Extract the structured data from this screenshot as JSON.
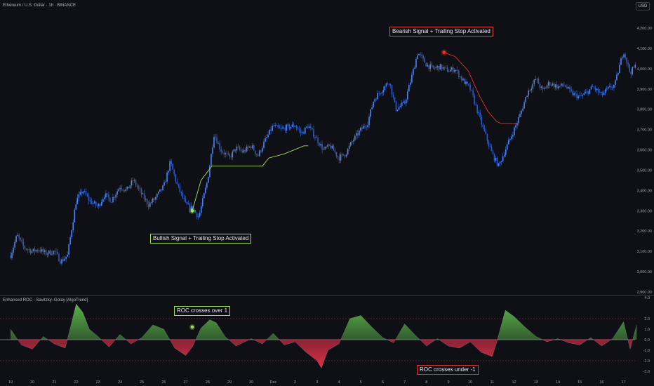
{
  "header": {
    "symbol_title": "Ethereum / U.S. Dollar · 1h · BINANCE",
    "currency_button": "USD"
  },
  "indicator": {
    "title": "Enhanced ROC - Savitzky–Golay [AlgoTrend]"
  },
  "annotations": {
    "bearish": "Bearish Signal + Trailing Stop Activated",
    "bullish": "Bullish Signal + Trailing Stop Activated",
    "roc_over": "ROC crosses over 1",
    "roc_under": "ROC crosses under -1"
  },
  "colors": {
    "background": "#0f1015",
    "candle": "#3f6fd8",
    "bull_stop": "#a4e35a",
    "bear_stop": "#e03030",
    "osc_pos": "#5ab24a",
    "osc_neg": "#e0304a",
    "grid_dash": "#a03c3c"
  },
  "chart_data": [
    {
      "type": "candlestick",
      "series_name": "ETHUSD 1h",
      "x_tick_labels": [
        "19",
        "20",
        "21",
        "22",
        "23",
        "24",
        "25",
        "26",
        "27",
        "28",
        "29",
        "30",
        "Dec",
        "2",
        "3",
        "4",
        "5",
        "6",
        "7",
        "8",
        "9",
        "10",
        "11",
        "12",
        "13",
        "14",
        "15",
        "16",
        "17"
      ],
      "y_tick_labels": [
        "2,900.00",
        "3,000.00",
        "3,100.00",
        "3,200.00",
        "3,300.00",
        "3,400.00",
        "3,500.00",
        "3,600.00",
        "3,700.00",
        "3,800.00",
        "3,900.00",
        "4,000.00",
        "4,100.00",
        "4,200.00"
      ],
      "ylim": [
        2890,
        4250
      ],
      "price_path": [
        [
          0,
          3080
        ],
        [
          0.3,
          3180
        ],
        [
          0.6,
          3120
        ],
        [
          1,
          3100
        ],
        [
          1.3,
          3110
        ],
        [
          1.6,
          3090
        ],
        [
          2,
          3100
        ],
        [
          2.3,
          3050
        ],
        [
          2.6,
          3080
        ],
        [
          3,
          3350
        ],
        [
          3.3,
          3400
        ],
        [
          3.6,
          3350
        ],
        [
          4,
          3320
        ],
        [
          4.3,
          3380
        ],
        [
          4.6,
          3350
        ],
        [
          5,
          3420
        ],
        [
          5.3,
          3400
        ],
        [
          5.6,
          3450
        ],
        [
          6,
          3380
        ],
        [
          6.3,
          3330
        ],
        [
          6.6,
          3360
        ],
        [
          7,
          3420
        ],
        [
          7.3,
          3540
        ],
        [
          7.6,
          3430
        ],
        [
          8,
          3330
        ],
        [
          8.3,
          3310
        ],
        [
          8.6,
          3270
        ],
        [
          9,
          3450
        ],
        [
          9.3,
          3680
        ],
        [
          9.6,
          3600
        ],
        [
          10,
          3560
        ],
        [
          10.3,
          3610
        ],
        [
          10.6,
          3590
        ],
        [
          11,
          3620
        ],
        [
          11.3,
          3570
        ],
        [
          11.6,
          3640
        ],
        [
          12,
          3720
        ],
        [
          12.3,
          3700
        ],
        [
          12.6,
          3710
        ],
        [
          13,
          3720
        ],
        [
          13.3,
          3680
        ],
        [
          13.6,
          3720
        ],
        [
          14,
          3650
        ],
        [
          14.3,
          3600
        ],
        [
          14.6,
          3620
        ],
        [
          15,
          3560
        ],
        [
          15.3,
          3580
        ],
        [
          15.6,
          3640
        ],
        [
          16,
          3700
        ],
        [
          16.3,
          3730
        ],
        [
          16.6,
          3850
        ],
        [
          17,
          3900
        ],
        [
          17.3,
          3940
        ],
        [
          17.6,
          3800
        ],
        [
          18,
          3830
        ],
        [
          18.3,
          3950
        ],
        [
          18.6,
          4080
        ],
        [
          19,
          4020
        ],
        [
          19.3,
          4000
        ],
        [
          19.6,
          4010
        ],
        [
          20,
          3990
        ],
        [
          20.3,
          4000
        ],
        [
          20.6,
          3950
        ],
        [
          21,
          3900
        ],
        [
          21.3,
          3800
        ],
        [
          21.6,
          3700
        ],
        [
          22,
          3580
        ],
        [
          22.3,
          3520
        ],
        [
          22.6,
          3600
        ],
        [
          23,
          3700
        ],
        [
          23.3,
          3780
        ],
        [
          23.6,
          3880
        ],
        [
          24,
          3950
        ],
        [
          24.3,
          3890
        ],
        [
          24.6,
          3930
        ],
        [
          25,
          3910
        ],
        [
          25.3,
          3920
        ],
        [
          25.6,
          3880
        ],
        [
          26,
          3860
        ],
        [
          26.3,
          3880
        ],
        [
          26.6,
          3910
        ],
        [
          27,
          3870
        ],
        [
          27.3,
          3900
        ],
        [
          27.6,
          3920
        ],
        [
          28,
          4090
        ],
        [
          28.3,
          3980
        ],
        [
          28.6,
          4020
        ]
      ],
      "signals": [
        {
          "label": "bullish",
          "day": 8.3,
          "price": 3300
        },
        {
          "label": "bearish",
          "day": 19.8,
          "price": 4080
        }
      ],
      "bull_trailing_stop": [
        [
          8.3,
          3300
        ],
        [
          8.7,
          3450
        ],
        [
          9.2,
          3520
        ],
        [
          11.5,
          3520
        ],
        [
          11.8,
          3560
        ],
        [
          12.5,
          3580
        ],
        [
          13.4,
          3620
        ],
        [
          13.6,
          3620
        ]
      ],
      "bear_trailing_stop": [
        [
          19.8,
          4080
        ],
        [
          20.3,
          4060
        ],
        [
          20.9,
          3990
        ],
        [
          21.4,
          3870
        ],
        [
          21.8,
          3790
        ],
        [
          22.2,
          3740
        ],
        [
          22.4,
          3730
        ],
        [
          23.2,
          3730
        ]
      ]
    },
    {
      "type": "area",
      "series_name": "Enhanced ROC",
      "title": "Enhanced ROC - Savitzky–Golay [AlgoTrend]",
      "y_tick_labels": [
        "4.0",
        "2.0",
        "1.0",
        "0.0",
        "-1.0",
        "-2.0",
        "-3.0"
      ],
      "ylim": [
        -3.2,
        4.3
      ],
      "levels": [
        2.0,
        0.0,
        -2.0
      ],
      "values": [
        [
          0,
          1.0
        ],
        [
          0.5,
          -0.5
        ],
        [
          1,
          -0.9
        ],
        [
          1.5,
          0.3
        ],
        [
          2,
          -0.4
        ],
        [
          2.5,
          -0.8
        ],
        [
          3,
          3.4
        ],
        [
          3.3,
          2.6
        ],
        [
          3.6,
          1.0
        ],
        [
          4,
          0.3
        ],
        [
          4.5,
          -0.7
        ],
        [
          5,
          0.5
        ],
        [
          5.5,
          -0.4
        ],
        [
          6,
          0.2
        ],
        [
          6.5,
          1.4
        ],
        [
          7,
          1.0
        ],
        [
          7.5,
          -0.8
        ],
        [
          8,
          -1.5
        ],
        [
          8.3,
          -0.7
        ],
        [
          8.7,
          1.1
        ],
        [
          9.1,
          1.9
        ],
        [
          9.4,
          1.6
        ],
        [
          9.8,
          0.3
        ],
        [
          10.3,
          -0.6
        ],
        [
          11,
          0.1
        ],
        [
          11.5,
          -0.4
        ],
        [
          12,
          0.6
        ],
        [
          12.5,
          -0.5
        ],
        [
          13,
          -0.2
        ],
        [
          13.5,
          -1.2
        ],
        [
          14,
          -2.0
        ],
        [
          14.2,
          -2.7
        ],
        [
          14.5,
          -1.0
        ],
        [
          15,
          -0.4
        ],
        [
          15.5,
          2.0
        ],
        [
          16,
          2.3
        ],
        [
          16.5,
          1.2
        ],
        [
          17,
          0.2
        ],
        [
          17.5,
          -0.3
        ],
        [
          18,
          1.5
        ],
        [
          18.5,
          0.4
        ],
        [
          19,
          -0.6
        ],
        [
          19.5,
          0.1
        ],
        [
          20,
          -0.6
        ],
        [
          20.5,
          -0.8
        ],
        [
          21,
          -0.2
        ],
        [
          21.5,
          -1.2
        ],
        [
          22,
          -1.6
        ],
        [
          22.2,
          -0.3
        ],
        [
          22.6,
          2.8
        ],
        [
          23,
          2.2
        ],
        [
          23.5,
          1.2
        ],
        [
          24,
          0.3
        ],
        [
          24.5,
          -0.2
        ],
        [
          25,
          0.1
        ],
        [
          25.5,
          -0.3
        ],
        [
          26,
          -0.5
        ],
        [
          26.5,
          0.2
        ],
        [
          27,
          -0.6
        ],
        [
          27.5,
          0.1
        ],
        [
          28,
          1.7
        ],
        [
          28.3,
          -0.9
        ],
        [
          28.6,
          1.4
        ]
      ],
      "signals": [
        {
          "label": "roc_over",
          "day": 8.3,
          "value": 1.2
        }
      ]
    }
  ]
}
